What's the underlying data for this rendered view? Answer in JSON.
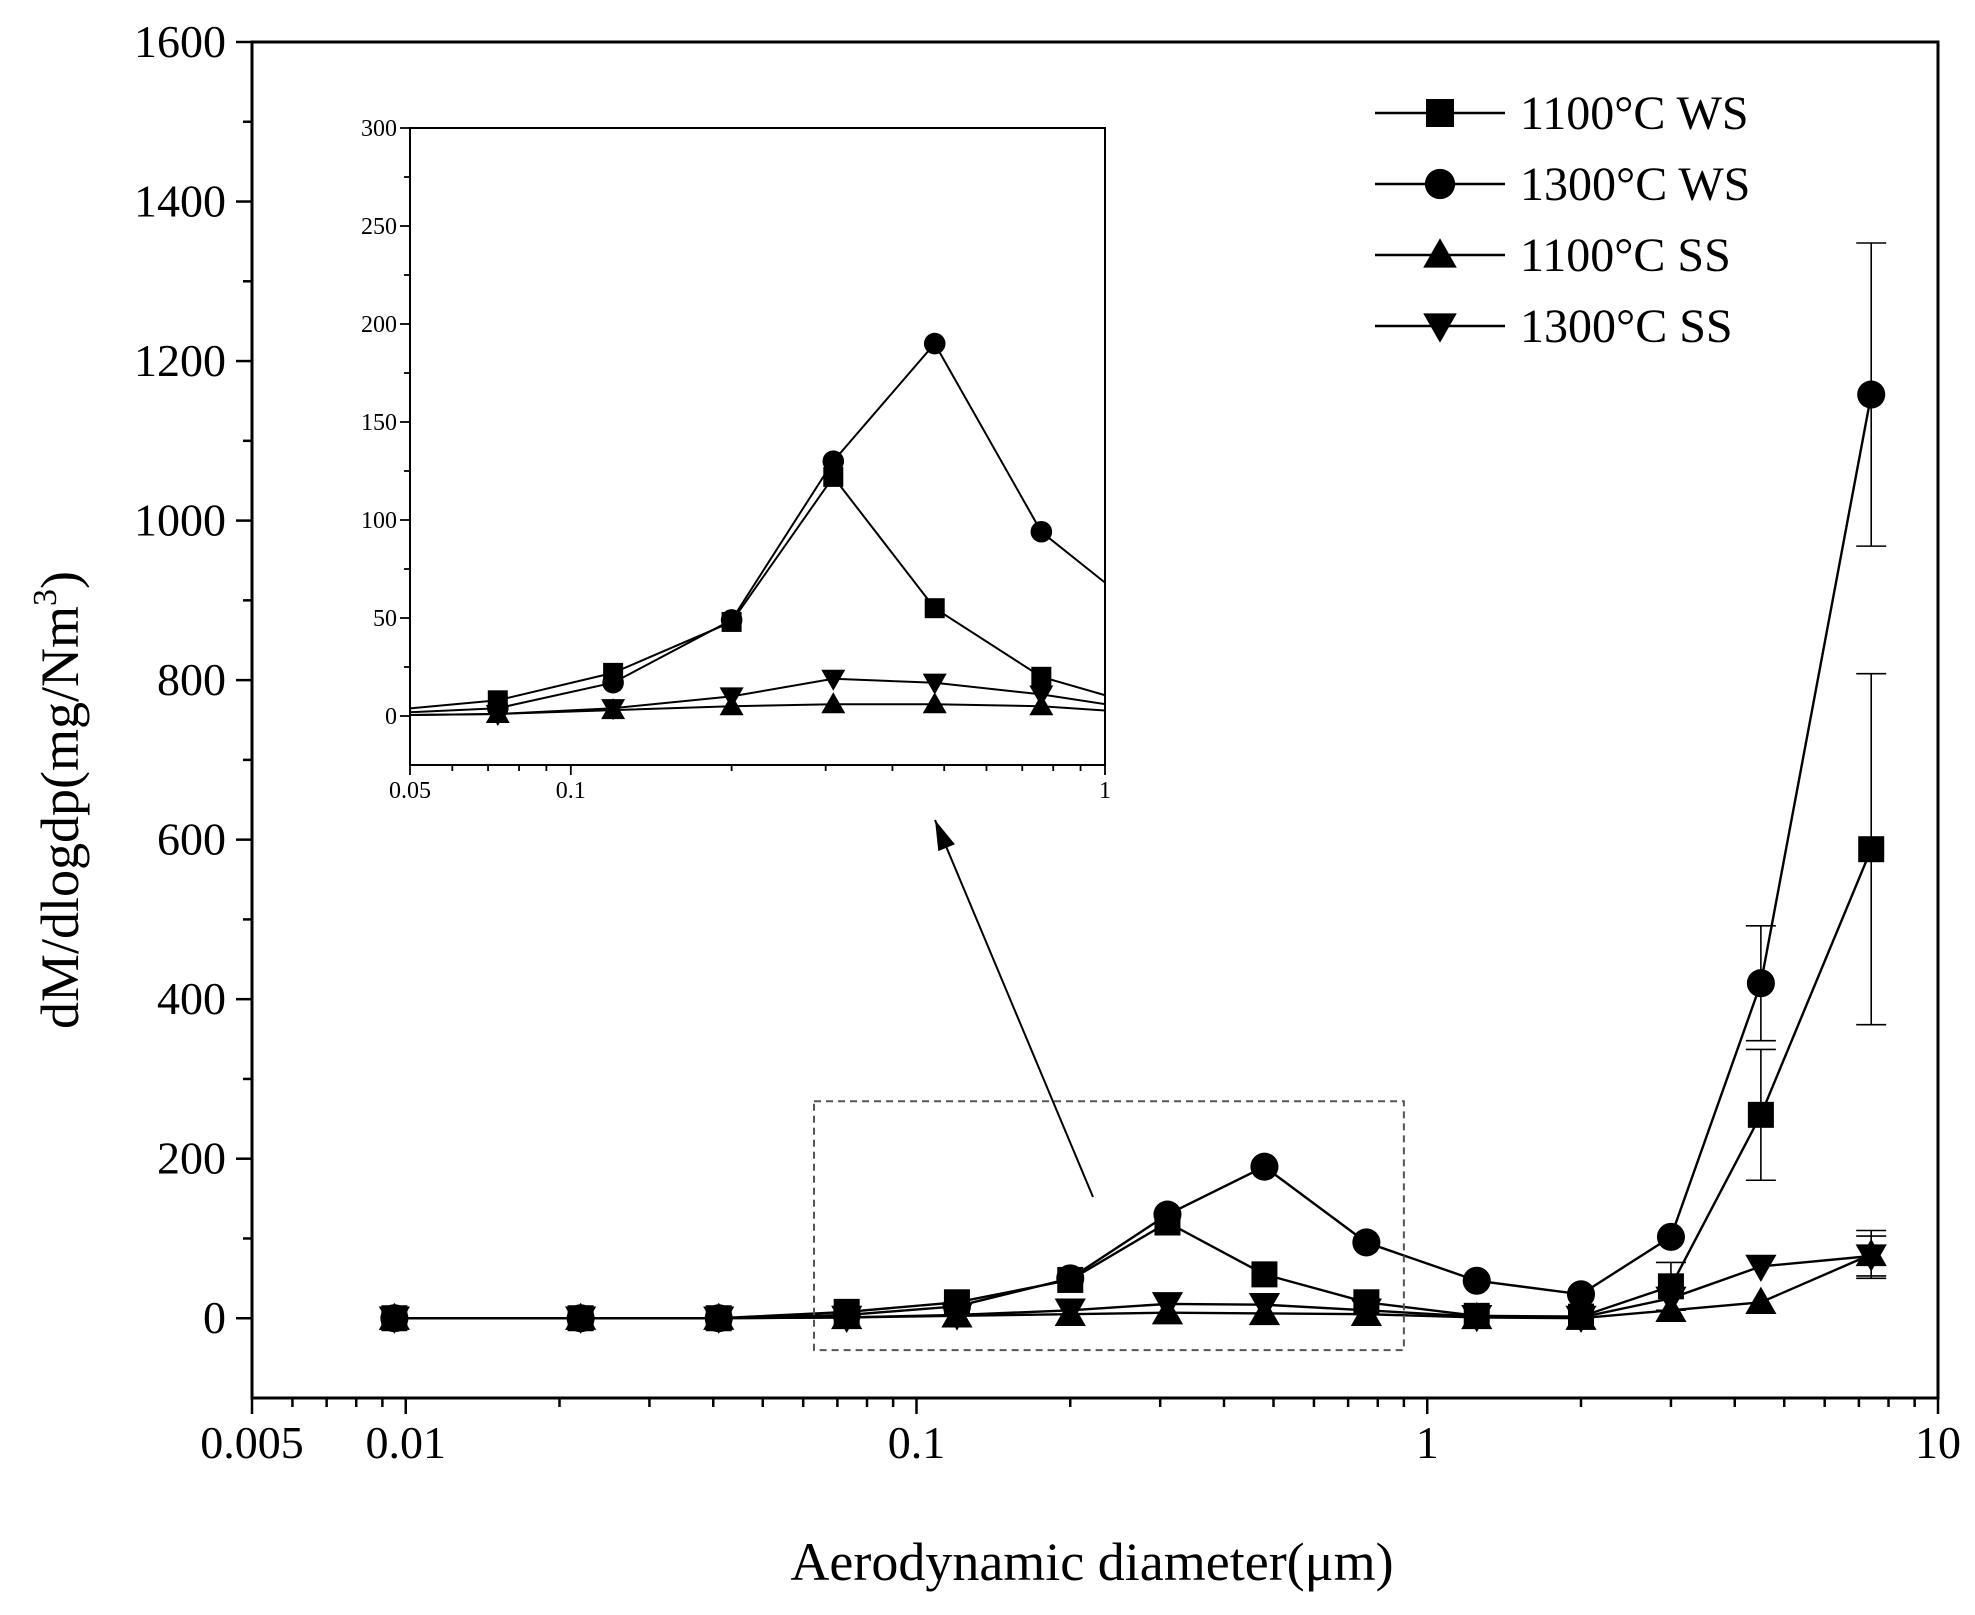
{
  "chart_data": [
    {
      "id": "main",
      "type": "line",
      "xscale": "log",
      "xlabel": "Aerodynamic diameter(μm)",
      "ylabel_main": "dM/dlogdp(mg/Nm",
      "ylabel_sup": "3",
      "ylabel_close": ")",
      "xlim": [
        0.005,
        10
      ],
      "ylim": [
        -100,
        1600
      ],
      "xticks": [
        0.005,
        0.01,
        0.1,
        1,
        10
      ],
      "xtick_labels": [
        "0.005",
        "0.01",
        "0.1",
        "1",
        "10"
      ],
      "yticks": [
        0,
        200,
        400,
        600,
        800,
        1000,
        1200,
        1400,
        1600
      ],
      "ytick_labels": [
        "0",
        "200",
        "400",
        "600",
        "800",
        "1000",
        "1200",
        "1400",
        "1600"
      ],
      "x": [
        0.0095,
        0.022,
        0.041,
        0.073,
        0.12,
        0.2,
        0.31,
        0.48,
        0.76,
        1.25,
        2.0,
        3.0,
        4.5,
        7.4
      ],
      "series": [
        {
          "name": "1100°C WS",
          "marker": "square",
          "values": [
            0,
            0,
            0,
            8,
            20,
            48,
            120,
            55,
            20,
            3,
            2,
            40,
            255,
            588
          ],
          "errors": [
            null,
            null,
            null,
            null,
            null,
            null,
            null,
            null,
            null,
            null,
            null,
            30,
            82,
            220
          ]
        },
        {
          "name": "1300°C WS",
          "marker": "circle",
          "values": [
            0,
            0,
            0,
            4,
            15,
            50,
            130,
            190,
            95,
            47,
            30,
            102,
            420,
            1158
          ],
          "errors": [
            null,
            null,
            null,
            null,
            null,
            null,
            null,
            null,
            null,
            null,
            null,
            null,
            72,
            190
          ]
        },
        {
          "name": "1100°C SS",
          "marker": "triangle-up",
          "values": [
            0,
            0,
            0,
            1,
            3,
            5,
            7,
            6,
            5,
            1,
            0,
            10,
            20,
            80
          ],
          "errors": [
            null,
            null,
            null,
            null,
            null,
            null,
            null,
            null,
            null,
            null,
            null,
            null,
            null,
            30
          ]
        },
        {
          "name": "1300°C SS",
          "marker": "triangle-down",
          "values": [
            0,
            0,
            0,
            1,
            4,
            10,
            18,
            17,
            10,
            2,
            1,
            25,
            65,
            78
          ],
          "errors": [
            null,
            null,
            null,
            null,
            null,
            null,
            null,
            null,
            null,
            null,
            null,
            null,
            null,
            25
          ]
        }
      ],
      "zoom_box": {
        "x": [
          0.063,
          0.9
        ],
        "y": [
          -40,
          272
        ]
      },
      "legend_position": "top-right"
    },
    {
      "id": "inset",
      "type": "line",
      "xscale": "log",
      "xlim": [
        0.05,
        1
      ],
      "ylim": [
        -25,
        300
      ],
      "xticks": [
        0.05,
        0.1,
        1
      ],
      "xtick_labels": [
        "0.05",
        "0.1",
        "1"
      ],
      "yticks": [
        0,
        50,
        100,
        150,
        200,
        250,
        300
      ],
      "ytick_labels": [
        "0",
        "50",
        "100",
        "150",
        "200",
        "250",
        "300"
      ],
      "x": [
        0.035,
        0.073,
        0.12,
        0.2,
        0.31,
        0.48,
        0.76,
        1.25
      ],
      "series": [
        {
          "name": "1100°C WS",
          "marker": "square",
          "values": [
            0,
            8,
            22,
            48,
            122,
            55,
            20,
            3
          ]
        },
        {
          "name": "1300°C WS",
          "marker": "circle",
          "values": [
            0,
            4,
            17,
            49,
            130,
            190,
            94,
            47
          ]
        },
        {
          "name": "1100°C SS",
          "marker": "triangle-up",
          "values": [
            0,
            1,
            3,
            5,
            6,
            6,
            5,
            1
          ]
        },
        {
          "name": "1300°C SS",
          "marker": "triangle-down",
          "values": [
            0,
            1,
            4,
            10,
            19,
            17,
            11,
            2
          ]
        }
      ]
    }
  ]
}
